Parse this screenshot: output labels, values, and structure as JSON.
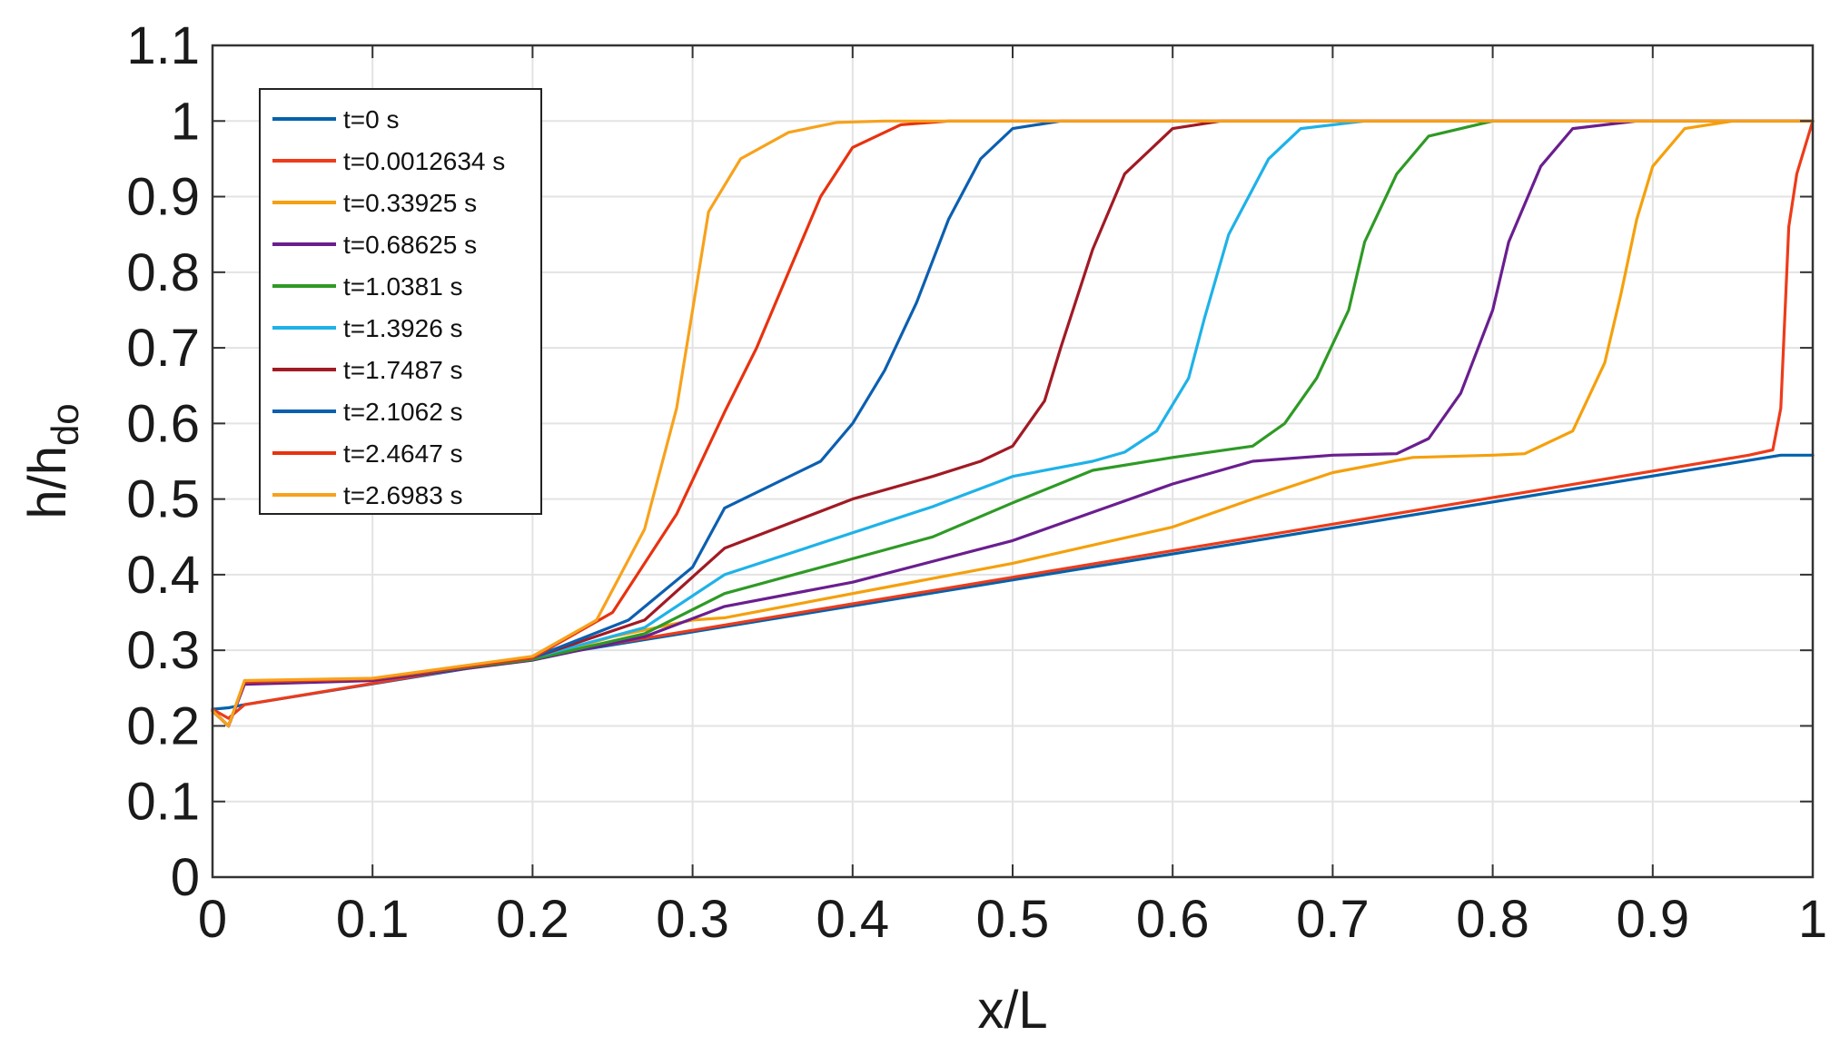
{
  "chart_data": {
    "type": "line",
    "title": "",
    "xlabel": "x/L",
    "ylabel": {
      "main": "h/h",
      "subscript": "do"
    },
    "xlim": [
      0,
      1
    ],
    "ylim": [
      0,
      1.1
    ],
    "grid": true,
    "legend_position": "top-left",
    "xticks": [
      {
        "value": 0,
        "label": "0"
      },
      {
        "value": 0.1,
        "label": "0.1"
      },
      {
        "value": 0.2,
        "label": "0.2"
      },
      {
        "value": 0.3,
        "label": "0.3"
      },
      {
        "value": 0.4,
        "label": "0.4"
      },
      {
        "value": 0.5,
        "label": "0.5"
      },
      {
        "value": 0.6,
        "label": "0.6"
      },
      {
        "value": 0.7,
        "label": "0.7"
      },
      {
        "value": 0.8,
        "label": "0.8"
      },
      {
        "value": 0.9,
        "label": "0.9"
      },
      {
        "value": 1,
        "label": "1"
      }
    ],
    "yticks": [
      {
        "value": 0,
        "label": "0"
      },
      {
        "value": 0.1,
        "label": "0.1"
      },
      {
        "value": 0.2,
        "label": "0.2"
      },
      {
        "value": 0.3,
        "label": "0.3"
      },
      {
        "value": 0.4,
        "label": "0.4"
      },
      {
        "value": 0.5,
        "label": "0.5"
      },
      {
        "value": 0.6,
        "label": "0.6"
      },
      {
        "value": 0.7,
        "label": "0.7"
      },
      {
        "value": 0.8,
        "label": "0.8"
      },
      {
        "value": 0.9,
        "label": "0.9"
      },
      {
        "value": 1,
        "label": "1"
      },
      {
        "value": 1.1,
        "label": "1.1"
      }
    ],
    "series": [
      {
        "name": "t=0 s",
        "color": "#0062ad",
        "points": [
          [
            0,
            0.222
          ],
          [
            0.01,
            0.224
          ],
          [
            0.02,
            0.228
          ],
          [
            0.98,
            0.558
          ],
          [
            1.0,
            0.558
          ]
        ]
      },
      {
        "name": "t=0.0012634 s",
        "color": "#ee3b1a",
        "points": [
          [
            0,
            0.222
          ],
          [
            0.01,
            0.21
          ],
          [
            0.02,
            0.228
          ],
          [
            0.96,
            0.558
          ],
          [
            0.975,
            0.565
          ],
          [
            0.98,
            0.62
          ],
          [
            0.985,
            0.86
          ],
          [
            0.99,
            0.93
          ],
          [
            1.0,
            1.0
          ]
        ]
      },
      {
        "name": "t=0.33925 s",
        "color": "#f5a00c",
        "points": [
          [
            0,
            0.22
          ],
          [
            0.01,
            0.2
          ],
          [
            0.02,
            0.258
          ],
          [
            0.1,
            0.26
          ],
          [
            0.2,
            0.287
          ],
          [
            0.25,
            0.318
          ],
          [
            0.3,
            0.34
          ],
          [
            0.32,
            0.343
          ],
          [
            0.5,
            0.415
          ],
          [
            0.6,
            0.463
          ],
          [
            0.65,
            0.5
          ],
          [
            0.7,
            0.535
          ],
          [
            0.75,
            0.555
          ],
          [
            0.8,
            0.558
          ],
          [
            0.82,
            0.56
          ],
          [
            0.85,
            0.59
          ],
          [
            0.87,
            0.68
          ],
          [
            0.88,
            0.77
          ],
          [
            0.89,
            0.87
          ],
          [
            0.9,
            0.94
          ],
          [
            0.92,
            0.99
          ],
          [
            0.95,
            1.0
          ],
          [
            1.0,
            1.0
          ]
        ]
      },
      {
        "name": "t=0.68625 s",
        "color": "#6a1e8f",
        "points": [
          [
            0,
            0.22
          ],
          [
            0.01,
            0.2
          ],
          [
            0.02,
            0.255
          ],
          [
            0.1,
            0.26
          ],
          [
            0.2,
            0.287
          ],
          [
            0.27,
            0.318
          ],
          [
            0.32,
            0.358
          ],
          [
            0.4,
            0.39
          ],
          [
            0.5,
            0.445
          ],
          [
            0.6,
            0.52
          ],
          [
            0.65,
            0.55
          ],
          [
            0.7,
            0.558
          ],
          [
            0.74,
            0.56
          ],
          [
            0.76,
            0.58
          ],
          [
            0.78,
            0.64
          ],
          [
            0.8,
            0.75
          ],
          [
            0.81,
            0.84
          ],
          [
            0.83,
            0.94
          ],
          [
            0.85,
            0.99
          ],
          [
            0.89,
            1.0
          ],
          [
            1.0,
            1.0
          ]
        ]
      },
      {
        "name": "t=1.0381 s",
        "color": "#2e9a25",
        "points": [
          [
            0,
            0.22
          ],
          [
            0.01,
            0.2
          ],
          [
            0.02,
            0.258
          ],
          [
            0.1,
            0.262
          ],
          [
            0.2,
            0.288
          ],
          [
            0.27,
            0.322
          ],
          [
            0.32,
            0.375
          ],
          [
            0.45,
            0.45
          ],
          [
            0.5,
            0.495
          ],
          [
            0.55,
            0.538
          ],
          [
            0.6,
            0.555
          ],
          [
            0.65,
            0.57
          ],
          [
            0.67,
            0.6
          ],
          [
            0.69,
            0.66
          ],
          [
            0.71,
            0.75
          ],
          [
            0.72,
            0.84
          ],
          [
            0.74,
            0.93
          ],
          [
            0.76,
            0.98
          ],
          [
            0.8,
            1.0
          ],
          [
            1.0,
            1.0
          ]
        ]
      },
      {
        "name": "t=1.3926 s",
        "color": "#1eb2e8",
        "points": [
          [
            0,
            0.22
          ],
          [
            0.01,
            0.2
          ],
          [
            0.02,
            0.258
          ],
          [
            0.1,
            0.262
          ],
          [
            0.2,
            0.29
          ],
          [
            0.27,
            0.33
          ],
          [
            0.32,
            0.4
          ],
          [
            0.45,
            0.49
          ],
          [
            0.5,
            0.53
          ],
          [
            0.55,
            0.55
          ],
          [
            0.57,
            0.562
          ],
          [
            0.59,
            0.59
          ],
          [
            0.61,
            0.66
          ],
          [
            0.62,
            0.74
          ],
          [
            0.635,
            0.85
          ],
          [
            0.66,
            0.95
          ],
          [
            0.68,
            0.99
          ],
          [
            0.72,
            1.0
          ],
          [
            1.0,
            1.0
          ]
        ]
      },
      {
        "name": "t=1.7487 s",
        "color": "#a11a24",
        "points": [
          [
            0,
            0.22
          ],
          [
            0.01,
            0.2
          ],
          [
            0.02,
            0.258
          ],
          [
            0.1,
            0.262
          ],
          [
            0.2,
            0.29
          ],
          [
            0.27,
            0.34
          ],
          [
            0.32,
            0.435
          ],
          [
            0.4,
            0.5
          ],
          [
            0.45,
            0.53
          ],
          [
            0.48,
            0.55
          ],
          [
            0.5,
            0.57
          ],
          [
            0.52,
            0.63
          ],
          [
            0.53,
            0.7
          ],
          [
            0.55,
            0.83
          ],
          [
            0.57,
            0.93
          ],
          [
            0.6,
            0.99
          ],
          [
            0.63,
            1.0
          ],
          [
            1.0,
            1.0
          ]
        ]
      },
      {
        "name": "t=2.1062 s",
        "color": "#0b5fb0",
        "points": [
          [
            0,
            0.22
          ],
          [
            0.01,
            0.2
          ],
          [
            0.02,
            0.258
          ],
          [
            0.1,
            0.262
          ],
          [
            0.2,
            0.29
          ],
          [
            0.26,
            0.34
          ],
          [
            0.3,
            0.41
          ],
          [
            0.32,
            0.488
          ],
          [
            0.38,
            0.55
          ],
          [
            0.4,
            0.6
          ],
          [
            0.42,
            0.67
          ],
          [
            0.44,
            0.76
          ],
          [
            0.46,
            0.87
          ],
          [
            0.48,
            0.95
          ],
          [
            0.5,
            0.99
          ],
          [
            0.53,
            1.0
          ],
          [
            1.0,
            1.0
          ]
        ]
      },
      {
        "name": "t=2.4647 s",
        "color": "#e8320f",
        "points": [
          [
            0,
            0.22
          ],
          [
            0.01,
            0.2
          ],
          [
            0.02,
            0.258
          ],
          [
            0.1,
            0.262
          ],
          [
            0.2,
            0.29
          ],
          [
            0.25,
            0.35
          ],
          [
            0.29,
            0.48
          ],
          [
            0.32,
            0.615
          ],
          [
            0.34,
            0.7
          ],
          [
            0.36,
            0.8
          ],
          [
            0.38,
            0.9
          ],
          [
            0.4,
            0.965
          ],
          [
            0.43,
            0.995
          ],
          [
            0.46,
            1.0
          ],
          [
            1.0,
            1.0
          ]
        ]
      },
      {
        "name": "t=2.6983 s",
        "color": "#f7a21c",
        "points": [
          [
            0,
            0.22
          ],
          [
            0.01,
            0.2
          ],
          [
            0.02,
            0.26
          ],
          [
            0.1,
            0.263
          ],
          [
            0.2,
            0.292
          ],
          [
            0.24,
            0.34
          ],
          [
            0.27,
            0.46
          ],
          [
            0.29,
            0.62
          ],
          [
            0.31,
            0.88
          ],
          [
            0.33,
            0.95
          ],
          [
            0.36,
            0.985
          ],
          [
            0.39,
            0.998
          ],
          [
            0.42,
            1.0
          ],
          [
            1.0,
            1.0
          ]
        ]
      }
    ]
  }
}
